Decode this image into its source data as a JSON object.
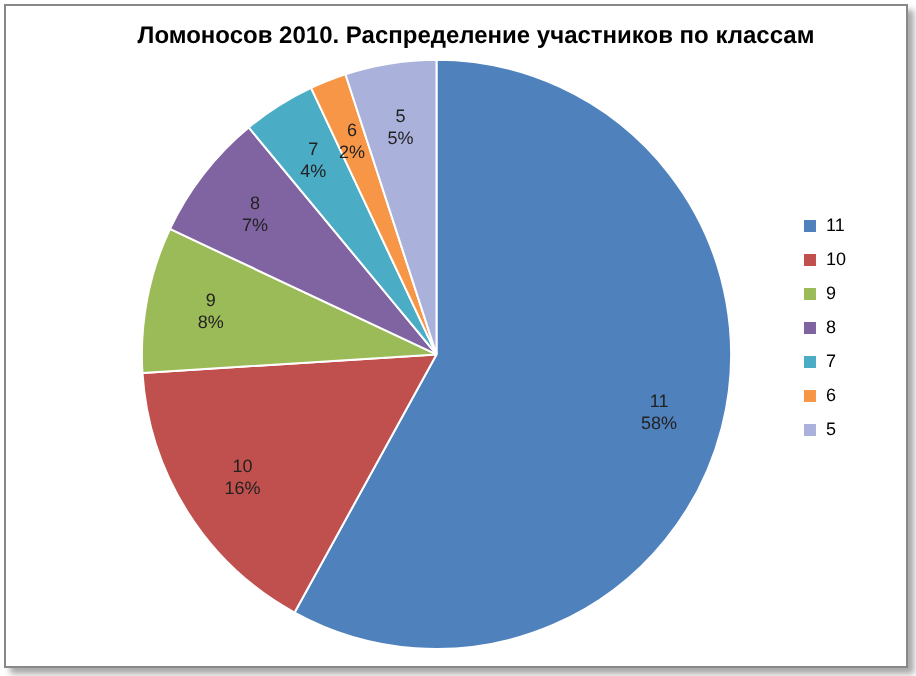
{
  "chart_data": {
    "type": "pie",
    "title": "Ломоносов 2010. Распределение участников по классам",
    "categories": [
      "11",
      "10",
      "9",
      "8",
      "7",
      "6",
      "5"
    ],
    "values": [
      58,
      16,
      8,
      7,
      4,
      2,
      5
    ],
    "value_labels": [
      "58%",
      "16%",
      "8%",
      "7%",
      "4%",
      "2%",
      "5%"
    ],
    "colors": [
      "#4f81bd",
      "#c0504d",
      "#9bbb59",
      "#8064a2",
      "#4bacc6",
      "#f79646",
      "#aab2dc"
    ],
    "legend": "right"
  }
}
